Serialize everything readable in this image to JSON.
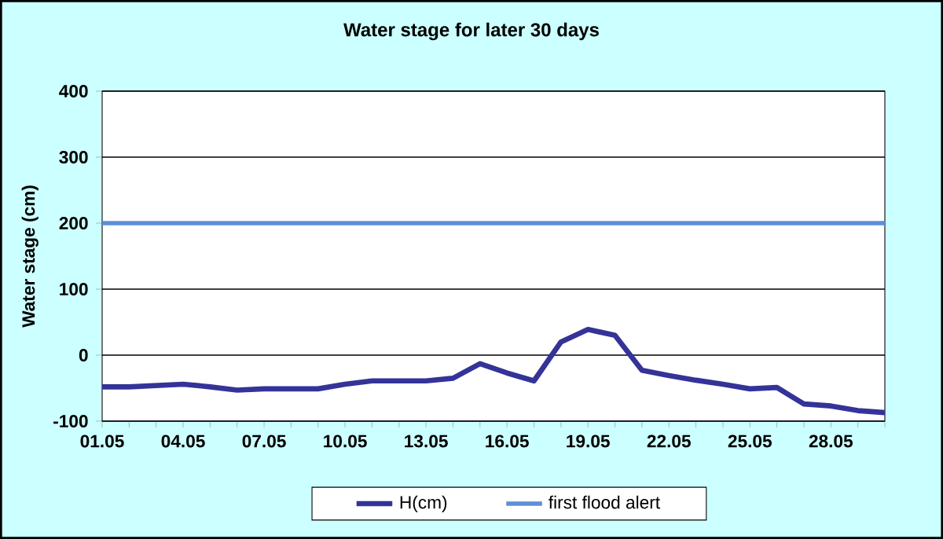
{
  "chart_data": {
    "type": "line",
    "title": "Water stage for later 30 days",
    "ylabel": "Water stage (cm)",
    "categories": [
      "01.05",
      null,
      null,
      "04.05",
      null,
      null,
      "07.05",
      null,
      null,
      "10.05",
      null,
      null,
      "13.05",
      null,
      null,
      "16.05",
      null,
      null,
      "19.05",
      null,
      null,
      "22.05",
      null,
      null,
      "25.05",
      null,
      null,
      "28.05",
      null,
      null
    ],
    "series": [
      {
        "name": "H(cm)",
        "color": "#333399",
        "values": [
          -48,
          -48,
          -46,
          -44,
          -48,
          -53,
          -51,
          -51,
          -51,
          -44,
          -39,
          -39,
          -39,
          -35,
          -13,
          -27,
          -39,
          20,
          39,
          30,
          -23,
          -31,
          -38,
          -44,
          -51,
          -49,
          -74,
          -77,
          -84,
          -87
        ]
      }
    ],
    "ref_lines": [
      {
        "axis": "y",
        "value": 200,
        "label": "first flood alert",
        "color": "#5b8fd6"
      }
    ],
    "ylim": [
      -100,
      400
    ],
    "yticks": [
      -100,
      0,
      100,
      200,
      300,
      400
    ],
    "grid": "y",
    "legend": "bottom",
    "marker": "none",
    "line_style": "solid"
  }
}
